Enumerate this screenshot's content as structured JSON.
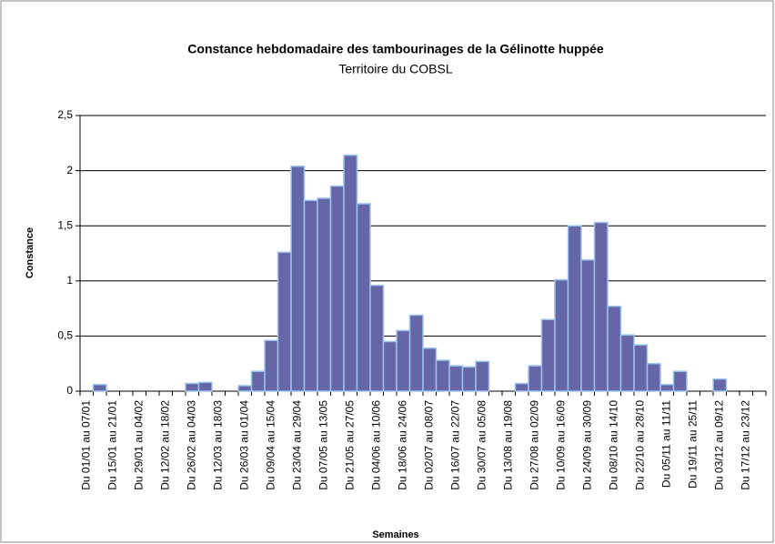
{
  "chart_data": {
    "type": "bar",
    "title": "Constance hebdomadaire des tambourinages de la Gélinotte huppée",
    "subtitle": "Territoire du COBSL",
    "x_label": "Semaines",
    "y_label": "Constance",
    "categories": [
      "Du 01/01 au 07/01",
      null,
      "Du 15/01 au 21/01",
      null,
      "Du 29/01 au 04/02",
      null,
      "Du 12/02 au 18/02",
      null,
      "Du 26/02 au 04/03",
      null,
      "Du 12/03 au 18/03",
      null,
      "Du 26/03 au 01/04",
      null,
      "Du 09/04 au 15/04",
      null,
      "Du 23/04 au 29/04",
      null,
      "Du 07/05 au 13/05",
      null,
      "Du 21/05 au 27/05",
      null,
      "Du 04/06 au 10/06",
      null,
      "Du 18/06 au 24/06",
      null,
      "Du 02/07 au 08/07",
      null,
      "Du 16/07 au 22/07",
      null,
      "Du 30/07 au 05/08",
      null,
      "Du 13/08 au 19/08",
      null,
      "Du 27/08 au 02/09",
      null,
      "Du 10/09 au 16/09",
      null,
      "Du 24/09 au 30/09",
      null,
      "Du 08/10 au 14/10",
      null,
      "Du 22/10 au 28/10",
      null,
      "Du 05/11 au 11/11",
      null,
      "Du 19/11 au 25/11",
      null,
      "Du 03/12 au 09/12",
      null,
      "Du 17/12 au 23/12",
      null
    ],
    "values": [
      0,
      0.06,
      0,
      0,
      0,
      0,
      0,
      0,
      0.07,
      0.08,
      0,
      0,
      0.05,
      0.18,
      0.46,
      1.26,
      2.04,
      1.73,
      1.75,
      1.86,
      2.14,
      1.7,
      0.96,
      0.45,
      0.55,
      0.69,
      0.39,
      0.28,
      0.23,
      0.22,
      0.27,
      0,
      0,
      0.07,
      0.23,
      0.65,
      1.01,
      1.5,
      1.19,
      1.53,
      0.77,
      0.51,
      0.42,
      0.25,
      0.06,
      0.18,
      0,
      0,
      0.11,
      0,
      0,
      0
    ],
    "color": "#6566a8",
    "edge_color": "#9fc2ea",
    "ylim": [
      0,
      2.5
    ],
    "yticks": [
      0,
      {
        "value": 0.5,
        "label": "0,5"
      },
      1,
      {
        "value": 1.5,
        "label": "1,5"
      },
      2,
      {
        "value": 2.5,
        "label": "2,5"
      }
    ],
    "grid": true
  }
}
